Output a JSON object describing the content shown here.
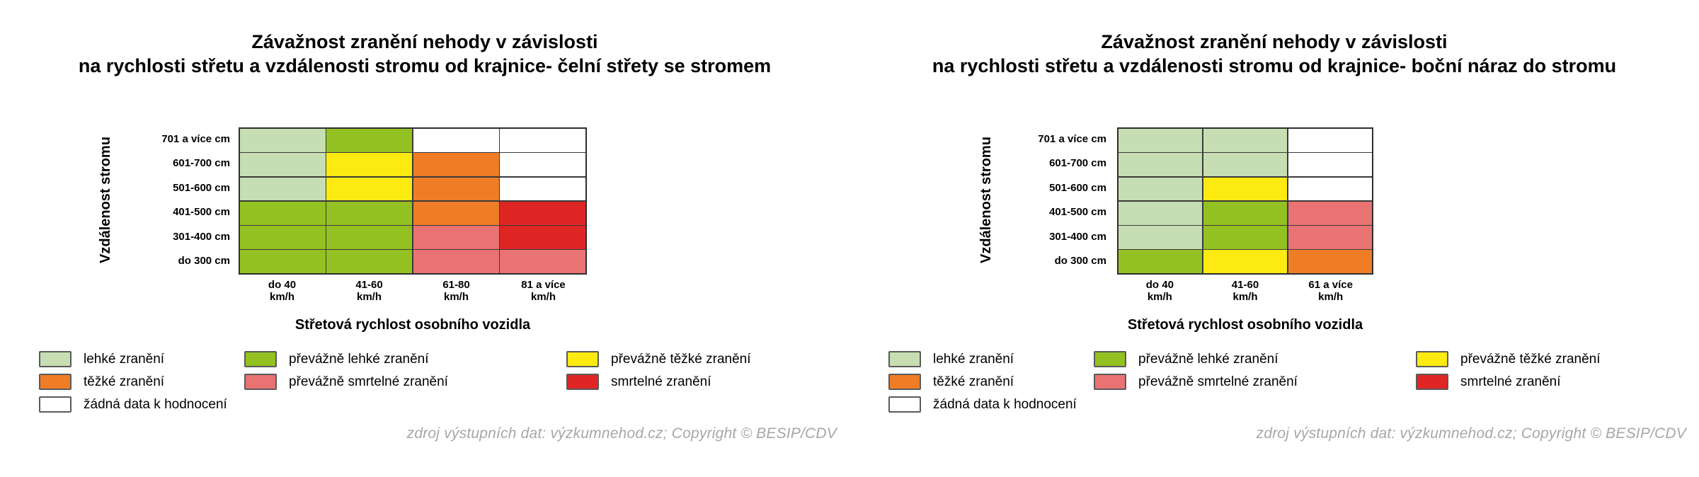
{
  "colors": {
    "lehke": "#c6deb2",
    "prevazne_lehke": "#94c122",
    "prevazne_tezke": "#fdea11",
    "tezke": "#ee7d26",
    "prevazne_smrtelne": "#e97273",
    "smrtelne": "#de2625",
    "zadna_data": "#ffffff"
  },
  "legend": {
    "columns": [
      [
        {
          "key": "lehke",
          "label": "lehké zranění"
        },
        {
          "key": "tezke",
          "label": "těžké zranění"
        },
        {
          "key": "zadna_data",
          "label": "žádná data k hodnocení"
        }
      ],
      [
        {
          "key": "prevazne_lehke",
          "label": "převážně lehké zranění"
        },
        {
          "key": "prevazne_smrtelne",
          "label": "převážně smrtelné zranění"
        }
      ],
      [
        {
          "key": "prevazne_tezke",
          "label": "převážně těžké zranění"
        },
        {
          "key": "smrtelne",
          "label": "smrtelné zranění"
        }
      ]
    ]
  },
  "footer": "zdroj výstupních dat: výzkumnehod.cz; Copyright © BESIP/CDV",
  "chart_data": [
    {
      "type": "heatmap",
      "title_lines": [
        "Závažnost zranění nehody v závislosti",
        "na rychlosti střetu a vzdálenosti stromu od krajnice- čelní střety se stromem"
      ],
      "ylabel": "Vzdálenost stromu",
      "xlabel": "Střetová rychlost osobního vozidla",
      "y_categories": [
        "701 a více cm",
        "601-700 cm",
        "501-600 cm",
        "401-500 cm",
        "301-400 cm",
        "do 300 cm"
      ],
      "x_categories": [
        "do 40 km/h",
        "41-60 km/h",
        "61-80 km/h",
        "81 a více km/h"
      ],
      "x_tick_lines": [
        [
          "do 40",
          "km/h"
        ],
        [
          "41-60",
          "km/h"
        ],
        [
          "61-80",
          "km/h"
        ],
        [
          "81 a více",
          "km/h"
        ]
      ],
      "values": [
        [
          "lehke",
          "prevazne_lehke",
          "zadna_data",
          "zadna_data"
        ],
        [
          "lehke",
          "prevazne_tezke",
          "tezke",
          "zadna_data"
        ],
        [
          "lehke",
          "prevazne_tezke",
          "tezke",
          "zadna_data"
        ],
        [
          "prevazne_lehke",
          "prevazne_lehke",
          "tezke",
          "smrtelne"
        ],
        [
          "prevazne_lehke",
          "prevazne_lehke",
          "prevazne_smrtelne",
          "smrtelne"
        ],
        [
          "prevazne_lehke",
          "prevazne_lehke",
          "prevazne_smrtelne",
          "prevazne_smrtelne"
        ]
      ]
    },
    {
      "type": "heatmap",
      "title_lines": [
        "Závažnost zranění nehody v závislosti",
        "na rychlosti střetu a vzdálenosti stromu od krajnice- boční náraz do stromu"
      ],
      "ylabel": "Vzdálenost stromu",
      "xlabel": "Střetová rychlost osobního vozidla",
      "y_categories": [
        "701 a více cm",
        "601-700 cm",
        "501-600 cm",
        "401-500 cm",
        "301-400 cm",
        "do 300 cm"
      ],
      "x_categories": [
        "do 40 km/h",
        "41-60 km/h",
        "61 a více km/h"
      ],
      "x_tick_lines": [
        [
          "do 40",
          "km/h"
        ],
        [
          "41-60",
          "km/h"
        ],
        [
          "61 a více",
          "km/h"
        ]
      ],
      "values": [
        [
          "lehke",
          "lehke",
          "zadna_data"
        ],
        [
          "lehke",
          "lehke",
          "zadna_data"
        ],
        [
          "lehke",
          "prevazne_tezke",
          "zadna_data"
        ],
        [
          "lehke",
          "prevazne_lehke",
          "prevazne_smrtelne"
        ],
        [
          "lehke",
          "prevazne_lehke",
          "prevazne_smrtelne"
        ],
        [
          "prevazne_lehke",
          "prevazne_tezke",
          "tezke"
        ]
      ]
    }
  ]
}
